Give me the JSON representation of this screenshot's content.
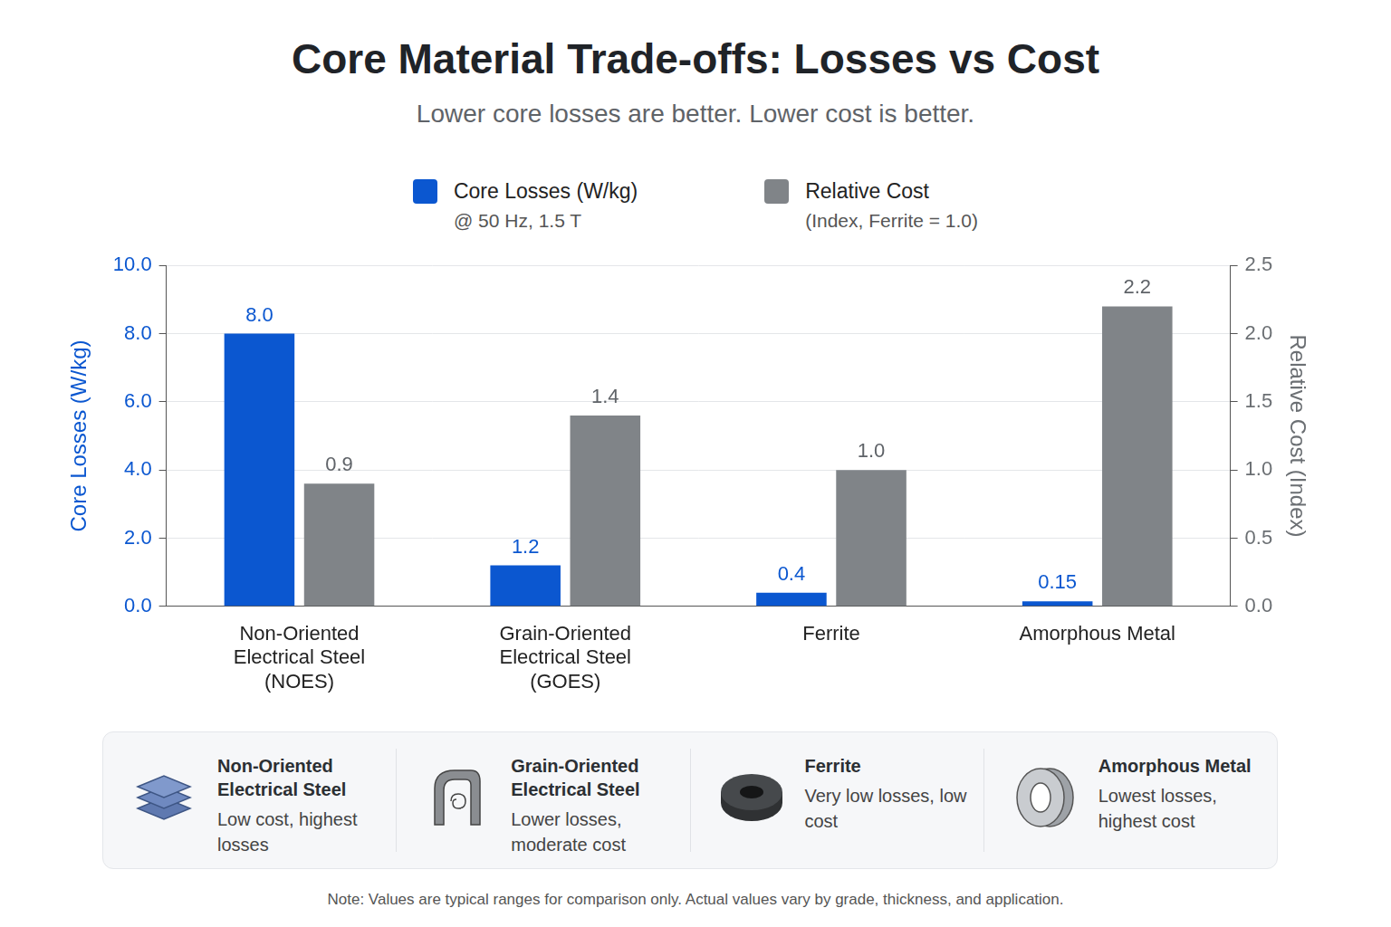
{
  "chart_data": {
    "type": "bar",
    "title": "Core Material Trade-offs: Losses vs Cost",
    "subtitle": "Lower core losses are better. Lower cost is better.",
    "categories": [
      "Non-Oriented Electrical Steel (NOES)",
      "Grain-Oriented Electrical Steel (GOES)",
      "Ferrite",
      "Amorphous Metal"
    ],
    "series": [
      {
        "name": "Core Losses (W/kg)",
        "subtitle": "@ 50 Hz, 1.5 T",
        "color": "#0b57d0",
        "values": [
          8.0,
          1.2,
          0.4,
          0.15
        ],
        "value_labels": [
          "8.0",
          "1.2",
          "0.4",
          "0.15"
        ]
      },
      {
        "name": "Relative Cost",
        "subtitle": "(Index, Ferrite = 1.0)",
        "color": "#808488",
        "axis": "y2",
        "values": [
          0.9,
          1.4,
          1.0,
          2.2
        ],
        "value_labels": [
          "0.9",
          "1.4",
          "1.0",
          "2.2"
        ]
      }
    ],
    "ylabel": "Core Losses (W/kg)",
    "y2label": "Relative Cost (Index)",
    "ylim": [
      0,
      10
    ],
    "yticks": [
      {
        "value": 0,
        "label": "0.0"
      },
      {
        "value": 2,
        "label": "2.0"
      },
      {
        "value": 4,
        "label": "4.0"
      },
      {
        "value": 6,
        "label": "6.0"
      },
      {
        "value": 8,
        "label": "8.0"
      },
      {
        "value": 10,
        "label": "10.0"
      }
    ],
    "y2lim": [
      0,
      2.5
    ],
    "y2ticks": [
      {
        "value": 0,
        "label": "0.0"
      },
      0.5,
      {
        "value": 1,
        "label": "1.0"
      },
      1.5,
      {
        "value": 2,
        "label": "2.0"
      },
      2.5
    ],
    "grid": true,
    "legend": "top",
    "data_labels": true
  },
  "panel": {
    "cards": [
      {
        "title": "Non-Oriented Electrical Steel",
        "text": "Low cost, highest losses"
      },
      {
        "title": "Grain-Oriented Electrical Steel",
        "text": "Lower losses, moderate cost"
      },
      {
        "title": "Ferrite",
        "text": "Very low losses, low cost"
      },
      {
        "title": "Amorphous Metal",
        "text": "Lowest losses, highest cost"
      }
    ]
  },
  "note": "Note: Values are typical ranges for comparison only. Actual values vary by grade, thickness, and application."
}
